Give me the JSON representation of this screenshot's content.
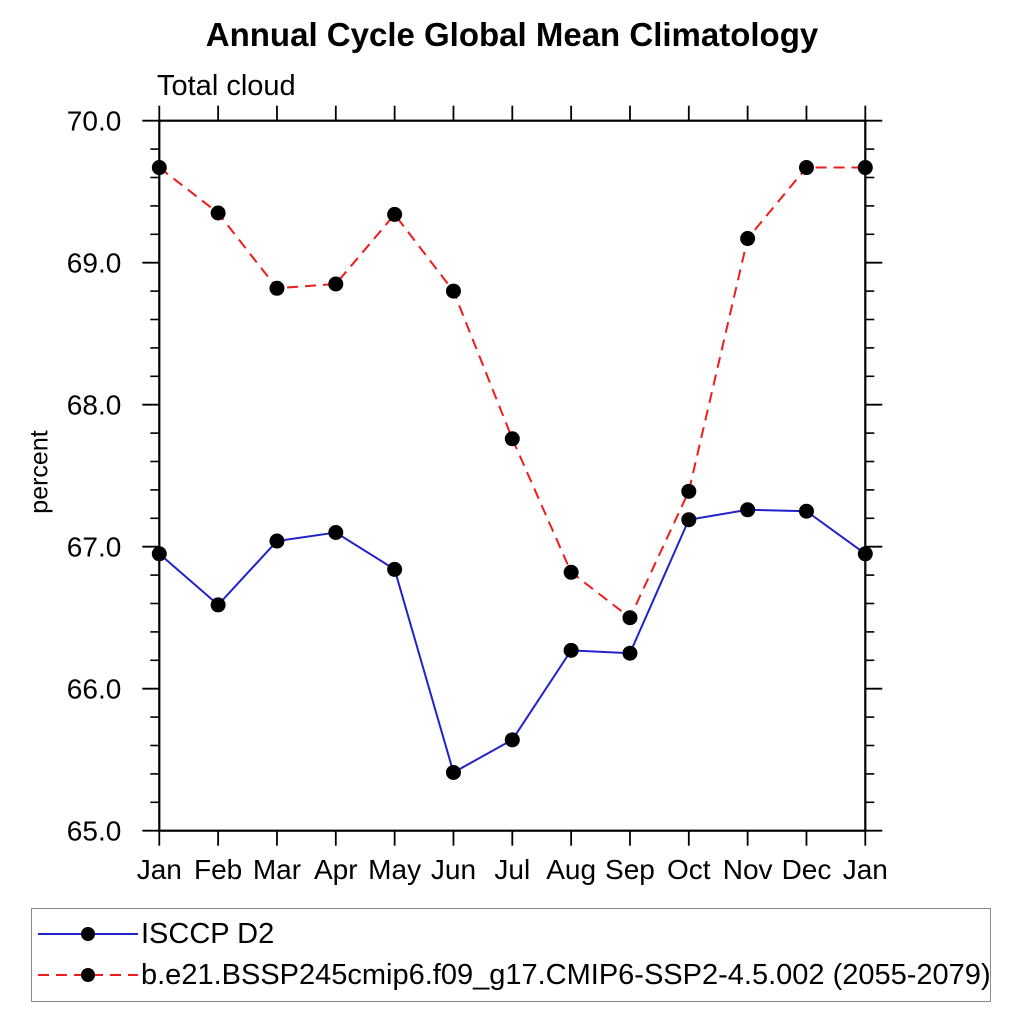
{
  "chart_data": {
    "type": "line",
    "title": "Annual Cycle Global Mean Climatology",
    "subtitle": "Total cloud",
    "ylabel": "percent",
    "xlabel": "",
    "categories": [
      "Jan",
      "Feb",
      "Mar",
      "Apr",
      "May",
      "Jun",
      "Jul",
      "Aug",
      "Sep",
      "Oct",
      "Nov",
      "Dec",
      "Jan"
    ],
    "ylim": [
      65.0,
      70.0
    ],
    "y_major_tick": 1.0,
    "y_minor_tick": 0.2,
    "y_tick_labels": [
      "65.0",
      "66.0",
      "67.0",
      "68.0",
      "69.0",
      "70.0"
    ],
    "grid": false,
    "legend_position": "bottom-left-box",
    "axis_color": "#000000",
    "marker": "filled-circle",
    "marker_color": "#000000",
    "series": [
      {
        "name": "ISCCP D2",
        "color": "#2222cc",
        "line_style": "solid",
        "values": [
          66.95,
          66.59,
          67.04,
          67.1,
          66.84,
          65.41,
          65.64,
          66.27,
          66.25,
          67.19,
          67.26,
          67.25,
          66.95
        ]
      },
      {
        "name": "b.e21.BSSP245cmip6.f09_g17.CMIP6-SSP2-4.5.002 (2055-2079)",
        "color": "#ee1c1c",
        "line_style": "dashed",
        "values": [
          69.67,
          69.35,
          68.82,
          68.85,
          69.34,
          68.8,
          67.76,
          66.82,
          66.5,
          67.39,
          69.17,
          69.67,
          69.67
        ]
      }
    ]
  }
}
